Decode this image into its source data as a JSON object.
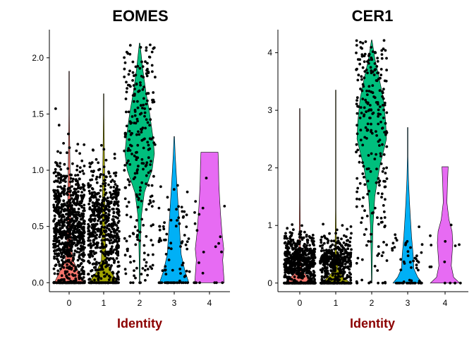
{
  "chart_data": [
    {
      "type": "violin",
      "title": "EOMES",
      "xlabel": "Identity",
      "ylabel": "",
      "categories": [
        "0",
        "1",
        "2",
        "3",
        "4"
      ],
      "colors": [
        "#F8766D",
        "#A3A500",
        "#00BF7D",
        "#00B0F6",
        "#E76BF3"
      ],
      "ylim": [
        -0.08,
        2.25
      ],
      "yticks": [
        0.0,
        0.5,
        1.0,
        1.5,
        2.0
      ],
      "ytick_labels": [
        "0.0",
        "0.5",
        "1.0",
        "1.5",
        "2.0"
      ],
      "series": [
        {
          "category": "0",
          "max": 1.88,
          "density": [
            [
              0,
              0.95
            ],
            [
              0.1,
              0.6
            ],
            [
              0.2,
              0.25
            ],
            [
              0.35,
              0.14
            ],
            [
              0.5,
              0.11
            ],
            [
              0.7,
              0.09
            ],
            [
              0.9,
              0.07
            ],
            [
              1.1,
              0.05
            ],
            [
              1.3,
              0.03
            ],
            [
              1.5,
              0.02
            ],
            [
              1.7,
              0.01
            ],
            [
              1.88,
              0.005
            ]
          ],
          "n_points": 900,
          "zero_fraction": 0.12,
          "point_mode": 0.5,
          "point_max": 1.88
        },
        {
          "category": "1",
          "max": 1.68,
          "density": [
            [
              0,
              0.95
            ],
            [
              0.1,
              0.45
            ],
            [
              0.2,
              0.15
            ],
            [
              0.35,
              0.12
            ],
            [
              0.5,
              0.1
            ],
            [
              0.7,
              0.08
            ],
            [
              0.9,
              0.07
            ],
            [
              1.1,
              0.05
            ],
            [
              1.3,
              0.03
            ],
            [
              1.5,
              0.015
            ],
            [
              1.68,
              0.005
            ]
          ],
          "n_points": 650,
          "zero_fraction": 0.12,
          "point_mode": 0.5,
          "point_max": 1.68
        },
        {
          "category": "2",
          "max": 2.13,
          "density": [
            [
              0,
              0.02
            ],
            [
              0.2,
              0.03
            ],
            [
              0.4,
              0.06
            ],
            [
              0.6,
              0.12
            ],
            [
              0.8,
              0.3
            ],
            [
              1.0,
              0.8
            ],
            [
              1.15,
              0.95
            ],
            [
              1.3,
              0.85
            ],
            [
              1.5,
              0.65
            ],
            [
              1.7,
              0.4
            ],
            [
              1.9,
              0.2
            ],
            [
              2.05,
              0.08
            ],
            [
              2.13,
              0.01
            ]
          ],
          "n_points": 260,
          "zero_fraction": 0.02,
          "point_mode": 1.2,
          "point_max": 2.13
        },
        {
          "category": "3",
          "max": 1.3,
          "density": [
            [
              0,
              0.95
            ],
            [
              0.1,
              0.7
            ],
            [
              0.25,
              0.45
            ],
            [
              0.4,
              0.38
            ],
            [
              0.55,
              0.32
            ],
            [
              0.7,
              0.25
            ],
            [
              0.85,
              0.18
            ],
            [
              1.0,
              0.12
            ],
            [
              1.15,
              0.06
            ],
            [
              1.3,
              0.01
            ]
          ],
          "n_points": 90,
          "zero_fraction": 0.3,
          "point_mode": 0.45,
          "point_max": 1.3
        },
        {
          "category": "4",
          "max": 1.16,
          "density": [
            [
              0,
              0.95
            ],
            [
              0.1,
              0.9
            ],
            [
              0.2,
              0.85
            ],
            [
              0.3,
              0.92
            ],
            [
              0.45,
              0.8
            ],
            [
              0.6,
              0.72
            ],
            [
              0.75,
              0.65
            ],
            [
              0.9,
              0.6
            ],
            [
              1.05,
              0.58
            ],
            [
              1.16,
              0.55
            ]
          ],
          "n_points": 22,
          "zero_fraction": 0.3,
          "point_mode": 0.45,
          "point_max": 1.16
        }
      ]
    },
    {
      "type": "violin",
      "title": "CER1",
      "xlabel": "Identity",
      "ylabel": "",
      "categories": [
        "0",
        "1",
        "2",
        "3",
        "4"
      ],
      "colors": [
        "#F8766D",
        "#A3A500",
        "#00BF7D",
        "#00B0F6",
        "#E76BF3"
      ],
      "ylim": [
        -0.15,
        4.4
      ],
      "yticks": [
        0,
        1,
        2,
        3,
        4
      ],
      "ytick_labels": [
        "0",
        "1",
        "2",
        "3",
        "4"
      ],
      "series": [
        {
          "category": "0",
          "max": 3.03,
          "density": [
            [
              0,
              0.95
            ],
            [
              0.1,
              0.6
            ],
            [
              0.2,
              0.18
            ],
            [
              0.4,
              0.07
            ],
            [
              0.7,
              0.04
            ],
            [
              1.0,
              0.03
            ],
            [
              1.5,
              0.02
            ],
            [
              2.0,
              0.01
            ],
            [
              3.03,
              0.003
            ]
          ],
          "n_points": 650,
          "zero_fraction": 0.25,
          "point_mode": 0.4,
          "point_max": 3.03
        },
        {
          "category": "1",
          "max": 3.35,
          "density": [
            [
              0,
              0.95
            ],
            [
              0.1,
              0.5
            ],
            [
              0.2,
              0.2
            ],
            [
              0.35,
              0.09
            ],
            [
              0.6,
              0.05
            ],
            [
              0.9,
              0.03
            ],
            [
              1.3,
              0.02
            ],
            [
              2.0,
              0.01
            ],
            [
              3.35,
              0.003
            ]
          ],
          "n_points": 500,
          "zero_fraction": 0.25,
          "point_mode": 0.4,
          "point_max": 3.35
        },
        {
          "category": "2",
          "max": 4.22,
          "density": [
            [
              0,
              0.02
            ],
            [
              0.5,
              0.04
            ],
            [
              1.0,
              0.08
            ],
            [
              1.5,
              0.2
            ],
            [
              2.0,
              0.5
            ],
            [
              2.5,
              0.95
            ],
            [
              2.8,
              0.9
            ],
            [
              3.2,
              0.75
            ],
            [
              3.6,
              0.45
            ],
            [
              3.9,
              0.2
            ],
            [
              4.22,
              0.02
            ]
          ],
          "n_points": 260,
          "zero_fraction": 0.02,
          "point_mode": 2.7,
          "point_max": 4.22
        },
        {
          "category": "3",
          "max": 2.7,
          "density": [
            [
              0,
              0.95
            ],
            [
              0.1,
              0.65
            ],
            [
              0.25,
              0.4
            ],
            [
              0.5,
              0.35
            ],
            [
              0.8,
              0.25
            ],
            [
              1.1,
              0.18
            ],
            [
              1.4,
              0.12
            ],
            [
              1.8,
              0.05
            ],
            [
              2.2,
              0.02
            ],
            [
              2.7,
              0.01
            ]
          ],
          "n_points": 55,
          "zero_fraction": 0.35,
          "point_mode": 0.5,
          "point_max": 2.7
        },
        {
          "category": "4",
          "max": 2.02,
          "density": [
            [
              0,
              0.95
            ],
            [
              0.1,
              0.55
            ],
            [
              0.3,
              0.4
            ],
            [
              0.5,
              0.45
            ],
            [
              0.7,
              0.5
            ],
            [
              0.9,
              0.45
            ],
            [
              1.1,
              0.25
            ],
            [
              1.4,
              0.12
            ],
            [
              1.7,
              0.15
            ],
            [
              2.02,
              0.2
            ]
          ],
          "n_points": 14,
          "zero_fraction": 0.35,
          "point_mode": 0.5,
          "point_max": 2.02
        }
      ]
    }
  ]
}
